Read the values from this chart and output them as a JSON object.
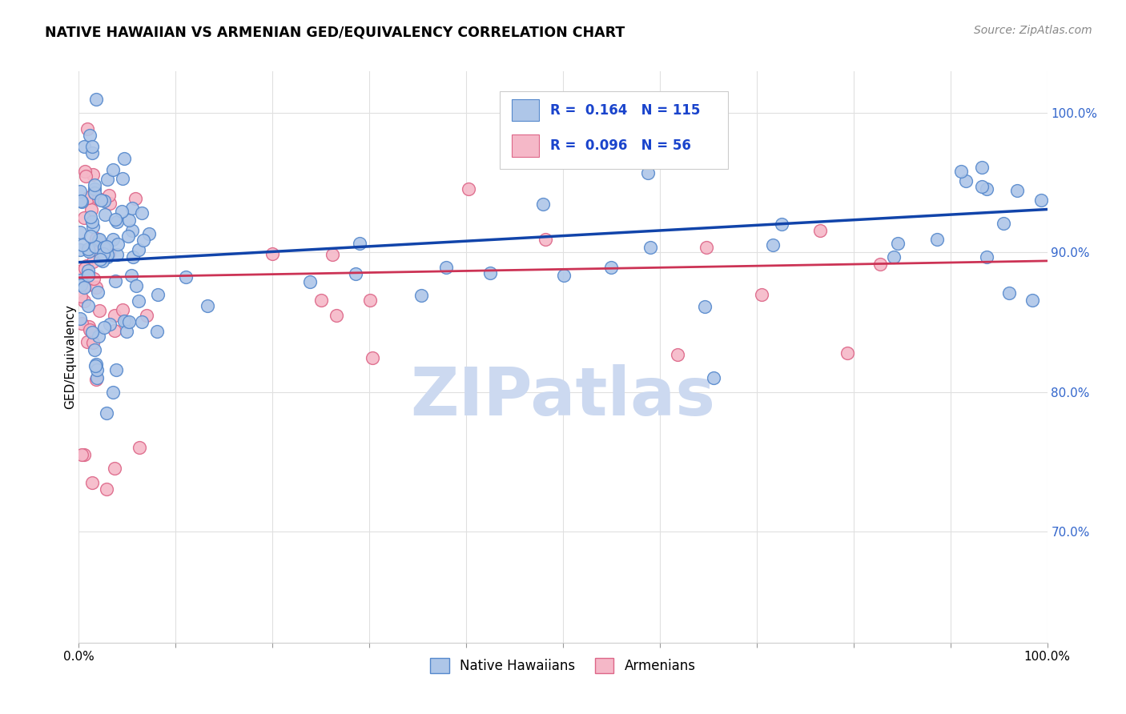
{
  "title": "NATIVE HAWAIIAN VS ARMENIAN GED/EQUIVALENCY CORRELATION CHART",
  "source": "Source: ZipAtlas.com",
  "ylabel": "GED/Equivalency",
  "blue_R": 0.164,
  "blue_N": 115,
  "pink_R": 0.096,
  "pink_N": 56,
  "blue_color": "#aec6e8",
  "blue_edge": "#5588cc",
  "pink_color": "#f5b8c8",
  "pink_edge": "#dd6688",
  "blue_line_color": "#1144aa",
  "pink_line_color": "#cc3355",
  "watermark_color": "#ccd9f0",
  "legend_label_blue": "Native Hawaiians",
  "legend_label_pink": "Armenians",
  "xlim": [
    0,
    1
  ],
  "ylim": [
    0.62,
    1.03
  ],
  "yticks": [
    0.7,
    0.8,
    0.9,
    1.0
  ],
  "ytick_labels": [
    "70.0%",
    "80.0%",
    "90.0%",
    "100.0%"
  ],
  "grid_color": "#e0e0e0"
}
